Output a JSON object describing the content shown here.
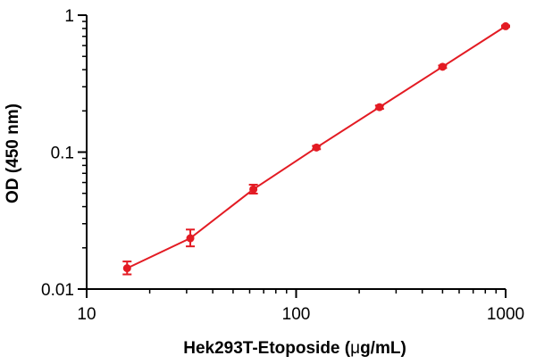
{
  "chart_data": {
    "type": "scatter",
    "xlabel_prefix": "Hek293T-Etoposide (",
    "xlabel_mu": "μ",
    "xlabel_suffix": "g/mL)",
    "ylabel": "OD (450 nm)",
    "x_scale": "log",
    "y_scale": "log",
    "xlim": [
      10,
      1000
    ],
    "ylim": [
      0.01,
      1
    ],
    "x_ticks": [
      10,
      100,
      1000
    ],
    "x_tick_labels": [
      "10",
      "100",
      "1000"
    ],
    "y_ticks": [
      0.01,
      0.1,
      1
    ],
    "y_tick_labels": [
      "0.01",
      "0.1",
      "1"
    ],
    "grid": false,
    "legend": false,
    "color": "#e31b23",
    "series": [
      {
        "x": [
          15.6,
          31.25,
          62.5,
          125,
          250,
          500,
          1000
        ],
        "y": [
          0.0142,
          0.0235,
          0.0535,
          0.108,
          0.213,
          0.42,
          0.83
        ],
        "err_low": [
          0.0128,
          0.0205,
          0.0498,
          0.105,
          0.207,
          0.411,
          0.819
        ],
        "err_high": [
          0.0159,
          0.0272,
          0.0578,
          0.111,
          0.219,
          0.429,
          0.841
        ],
        "fit": true
      }
    ]
  }
}
